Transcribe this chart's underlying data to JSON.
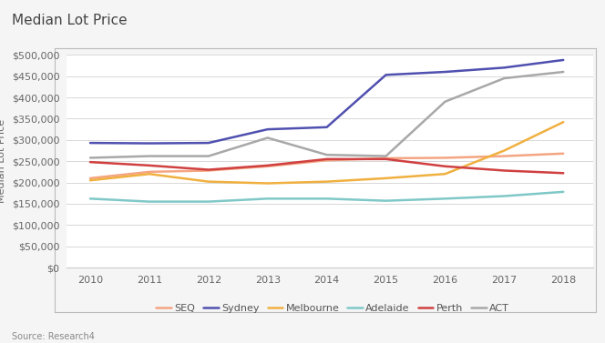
{
  "title": "Median Lot Price",
  "ylabel": "Median Lot Price",
  "source": "Source: Research4",
  "years": [
    2010,
    2011,
    2012,
    2013,
    2014,
    2015,
    2016,
    2017,
    2018
  ],
  "series": {
    "SEQ": [
      210000,
      225000,
      228000,
      238000,
      252000,
      257000,
      258000,
      262000,
      268000
    ],
    "Sydney": [
      293000,
      292000,
      293000,
      325000,
      330000,
      453000,
      460000,
      470000,
      488000
    ],
    "Melbourne": [
      205000,
      220000,
      202000,
      198000,
      202000,
      210000,
      220000,
      275000,
      342000
    ],
    "Adelaide": [
      162000,
      155000,
      155000,
      162000,
      162000,
      157000,
      162000,
      168000,
      178000
    ],
    "Perth": [
      248000,
      240000,
      230000,
      240000,
      255000,
      255000,
      238000,
      228000,
      222000
    ],
    "ACT": [
      258000,
      262000,
      262000,
      305000,
      265000,
      262000,
      390000,
      445000,
      460000
    ]
  },
  "colors": {
    "SEQ": "#f4a582",
    "Sydney": "#5050b0",
    "Melbourne": "#f0b040",
    "Adelaide": "#80c8c8",
    "Perth": "#d04040",
    "ACT": "#a8a8a8"
  },
  "ylim": [
    0,
    500000
  ],
  "yticks": [
    0,
    50000,
    100000,
    150000,
    200000,
    250000,
    300000,
    350000,
    400000,
    450000,
    500000
  ],
  "background_color": "#f5f5f5",
  "plot_bg_color": "#ffffff",
  "grid_color": "#d8d8d8",
  "title_fontsize": 11,
  "axis_label_fontsize": 8,
  "tick_fontsize": 8,
  "legend_fontsize": 8,
  "line_width": 1.8
}
